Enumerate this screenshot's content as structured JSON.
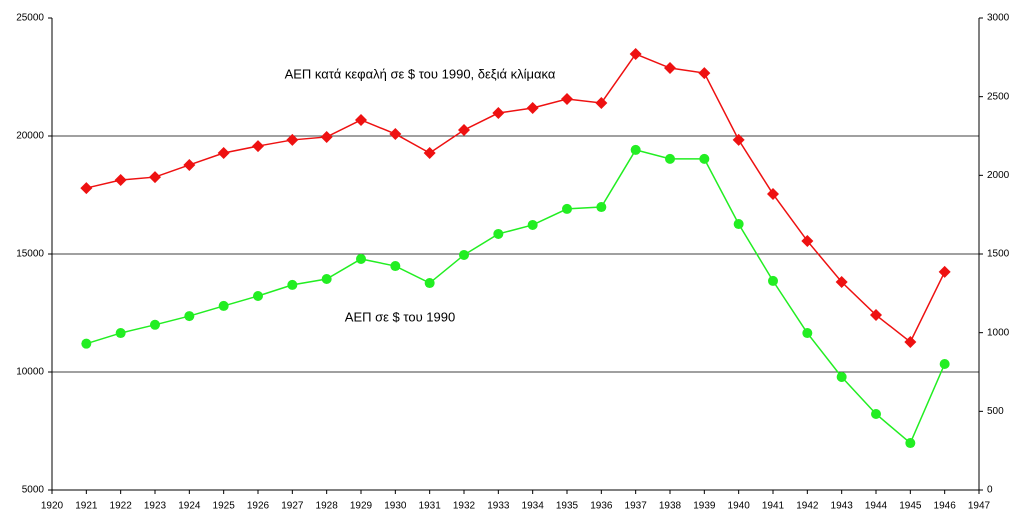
{
  "chart_data": {
    "type": "line",
    "x": [
      1921,
      1922,
      1923,
      1924,
      1925,
      1926,
      1927,
      1928,
      1929,
      1930,
      1931,
      1932,
      1933,
      1934,
      1935,
      1936,
      1937,
      1938,
      1939,
      1940,
      1941,
      1942,
      1943,
      1944,
      1945,
      1946
    ],
    "series": [
      {
        "name": "ΑΕΠ σε $ του 1990",
        "color": "#22ee22",
        "marker": "circle",
        "axis": "y",
        "values": [
          11200,
          11650,
          12000,
          12370,
          12800,
          13220,
          13690,
          13940,
          14790,
          14490,
          13770,
          14960,
          15850,
          16230,
          16910,
          16990,
          19410,
          19030,
          19030,
          16270,
          13860,
          11650,
          9790,
          8220,
          6990,
          10340
        ]
      },
      {
        "name": "ΑΕΠ κατά κεφαλή σε $ του 1990, δεξιά κλίμακα",
        "color": "#ee1111",
        "marker": "diamond",
        "axis": "y2",
        "values": [
          1919,
          1970,
          1989,
          2066,
          2142,
          2186,
          2225,
          2244,
          2352,
          2263,
          2142,
          2288,
          2396,
          2428,
          2485,
          2460,
          2771,
          2682,
          2650,
          2225,
          1881,
          1583,
          1322,
          1112,
          941,
          1386
        ]
      }
    ],
    "xlim": [
      1920,
      1947
    ],
    "xticks": [
      1920,
      1921,
      1922,
      1923,
      1924,
      1925,
      1926,
      1927,
      1928,
      1929,
      1930,
      1931,
      1932,
      1933,
      1934,
      1935,
      1936,
      1937,
      1938,
      1939,
      1940,
      1941,
      1942,
      1943,
      1944,
      1945,
      1946,
      1947
    ],
    "ylim": [
      5000,
      25000
    ],
    "yticks": [
      5000,
      10000,
      15000,
      20000,
      25000
    ],
    "y2lim": [
      0,
      3000
    ],
    "y2ticks": [
      0,
      500,
      1000,
      1500,
      2000,
      2500,
      3000
    ],
    "grid": true
  }
}
